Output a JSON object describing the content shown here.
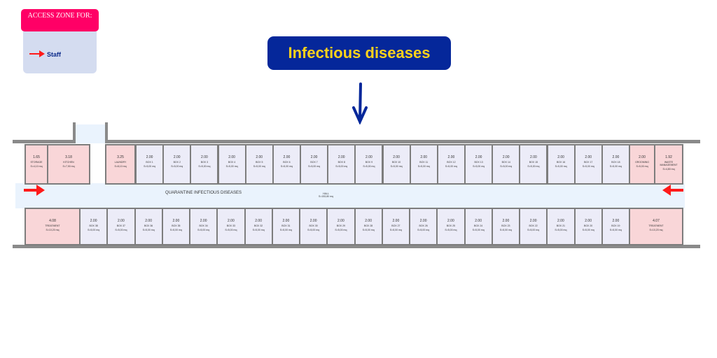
{
  "legend": {
    "heading": "ACCESS ZONE FOR:",
    "items": [
      {
        "label": "Staff",
        "arrow_color": "#ff1a1a"
      }
    ]
  },
  "title": "Infectious diseases",
  "colors": {
    "title_bg": "#05279a",
    "title_text": "#ffd21a",
    "legend_head": "#ff0066",
    "service_rooms": "#f9d6d8",
    "boxes": "#ececf8",
    "corridor": "#eaf3fd",
    "arrow": "#ff1a1a"
  },
  "plan": {
    "corridor_label": "QUARANTINE INFECTIOUS DISEASES",
    "hall": {
      "name": "HALL",
      "area": "S=153,80 mq"
    },
    "service_rooms": [
      {
        "dim": "1.65",
        "name": "STORAGE",
        "area": "S=4,10 mq"
      },
      {
        "dim": "3.18",
        "name": "KITCHEN",
        "area": "S=7,90 mq"
      },
      {
        "dim": "3.25",
        "name": "LAUNDRY",
        "area": "S=8,10 mq"
      },
      {
        "dim": "4.08",
        "name": "TREATMENT",
        "area": "S=10,20 mq"
      },
      {
        "dim": "2.00",
        "name": "GROOMING",
        "area": "S=5,00 mq"
      },
      {
        "dim": "1.92",
        "name": "WASTE MANAGEMENT",
        "area": "S=4,80 mq"
      },
      {
        "dim": "4.07",
        "name": "TREATMENT",
        "area": "S=10,20 mq"
      }
    ],
    "box_dim": "2.00",
    "box_area": "S=5,00 mq",
    "top_boxes": [
      "BOX 1",
      "BOX 2",
      "BOX 3",
      "BOX 4",
      "BOX 5",
      "BOX 6",
      "BOX 7",
      "BOX 8",
      "BOX 9",
      "BOX 10",
      "BOX 11",
      "BOX 12",
      "BOX 13",
      "BOX 14",
      "BOX 15",
      "BOX 16",
      "BOX 17",
      "BOX 18"
    ],
    "bottom_boxes": [
      "BOX 38",
      "BOX 37",
      "BOX 36",
      "BOX 35",
      "BOX 34",
      "BOX 33",
      "BOX 32",
      "BOX 31",
      "BOX 30",
      "BOX 29",
      "BOX 28",
      "BOX 27",
      "BOX 26",
      "BOX 25",
      "BOX 24",
      "BOX 23",
      "BOX 22",
      "BOX 21",
      "BOX 20",
      "BOX 19"
    ]
  }
}
